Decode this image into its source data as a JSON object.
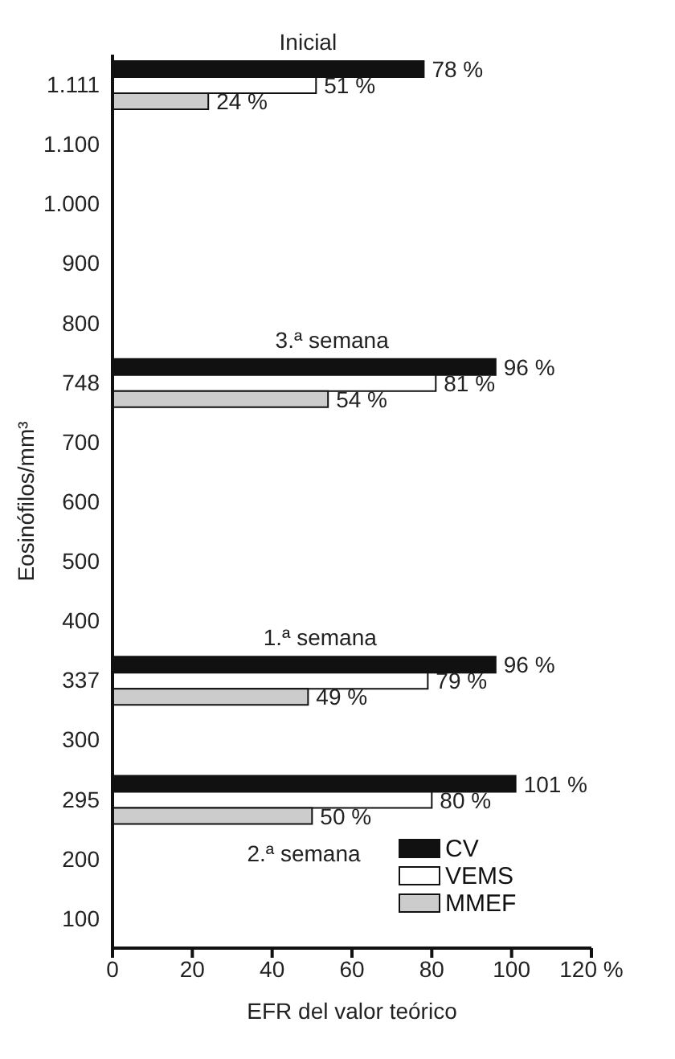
{
  "chart_data": {
    "type": "bar",
    "orientation": "horizontal",
    "xlabel": "EFR del valor teórico",
    "ylabel": "Eosinófilos/mm³",
    "categories": [
      "1.111",
      "1.100",
      "1.000",
      "900",
      "800",
      "748",
      "700",
      "600",
      "500",
      "400",
      "337",
      "300",
      "295",
      "200",
      "100"
    ],
    "series": [
      {
        "name": "CV",
        "color": "#111111",
        "values": [
          78,
          null,
          null,
          null,
          null,
          96,
          null,
          null,
          null,
          null,
          96,
          null,
          101,
          null,
          null
        ],
        "value_labels": [
          "78 %",
          null,
          null,
          null,
          null,
          "96 %",
          null,
          null,
          null,
          null,
          "96 %",
          null,
          "101 %",
          null,
          null
        ]
      },
      {
        "name": "VEMS",
        "color": "#ffffff",
        "values": [
          51,
          null,
          null,
          null,
          null,
          81,
          null,
          null,
          null,
          null,
          79,
          null,
          80,
          null,
          null
        ],
        "value_labels": [
          "51 %",
          null,
          null,
          null,
          null,
          "81 %",
          null,
          null,
          null,
          null,
          "79 %",
          null,
          "80 %",
          null,
          null
        ]
      },
      {
        "name": "MMEF",
        "color": "#cccccc",
        "values": [
          24,
          null,
          null,
          null,
          null,
          54,
          null,
          null,
          null,
          null,
          49,
          null,
          50,
          null,
          null
        ],
        "value_labels": [
          "24 %",
          null,
          null,
          null,
          null,
          "54 %",
          null,
          null,
          null,
          null,
          "49 %",
          null,
          "50 %",
          null,
          null
        ]
      }
    ],
    "xlim": [
      0,
      120
    ],
    "xticks": [
      0,
      20,
      40,
      60,
      80,
      100,
      {
        "value": 120,
        "label": "120 %"
      }
    ],
    "annotations": [
      {
        "text": "Inicial",
        "x": 49,
        "y": "1.111"
      },
      {
        "text": "3.ª semana",
        "x": 55,
        "y": "748"
      },
      {
        "text": "1.ª semana",
        "x": 52,
        "y": "337"
      },
      "2.ª semana"
    ],
    "legend": "bottom right",
    "grid": false
  }
}
